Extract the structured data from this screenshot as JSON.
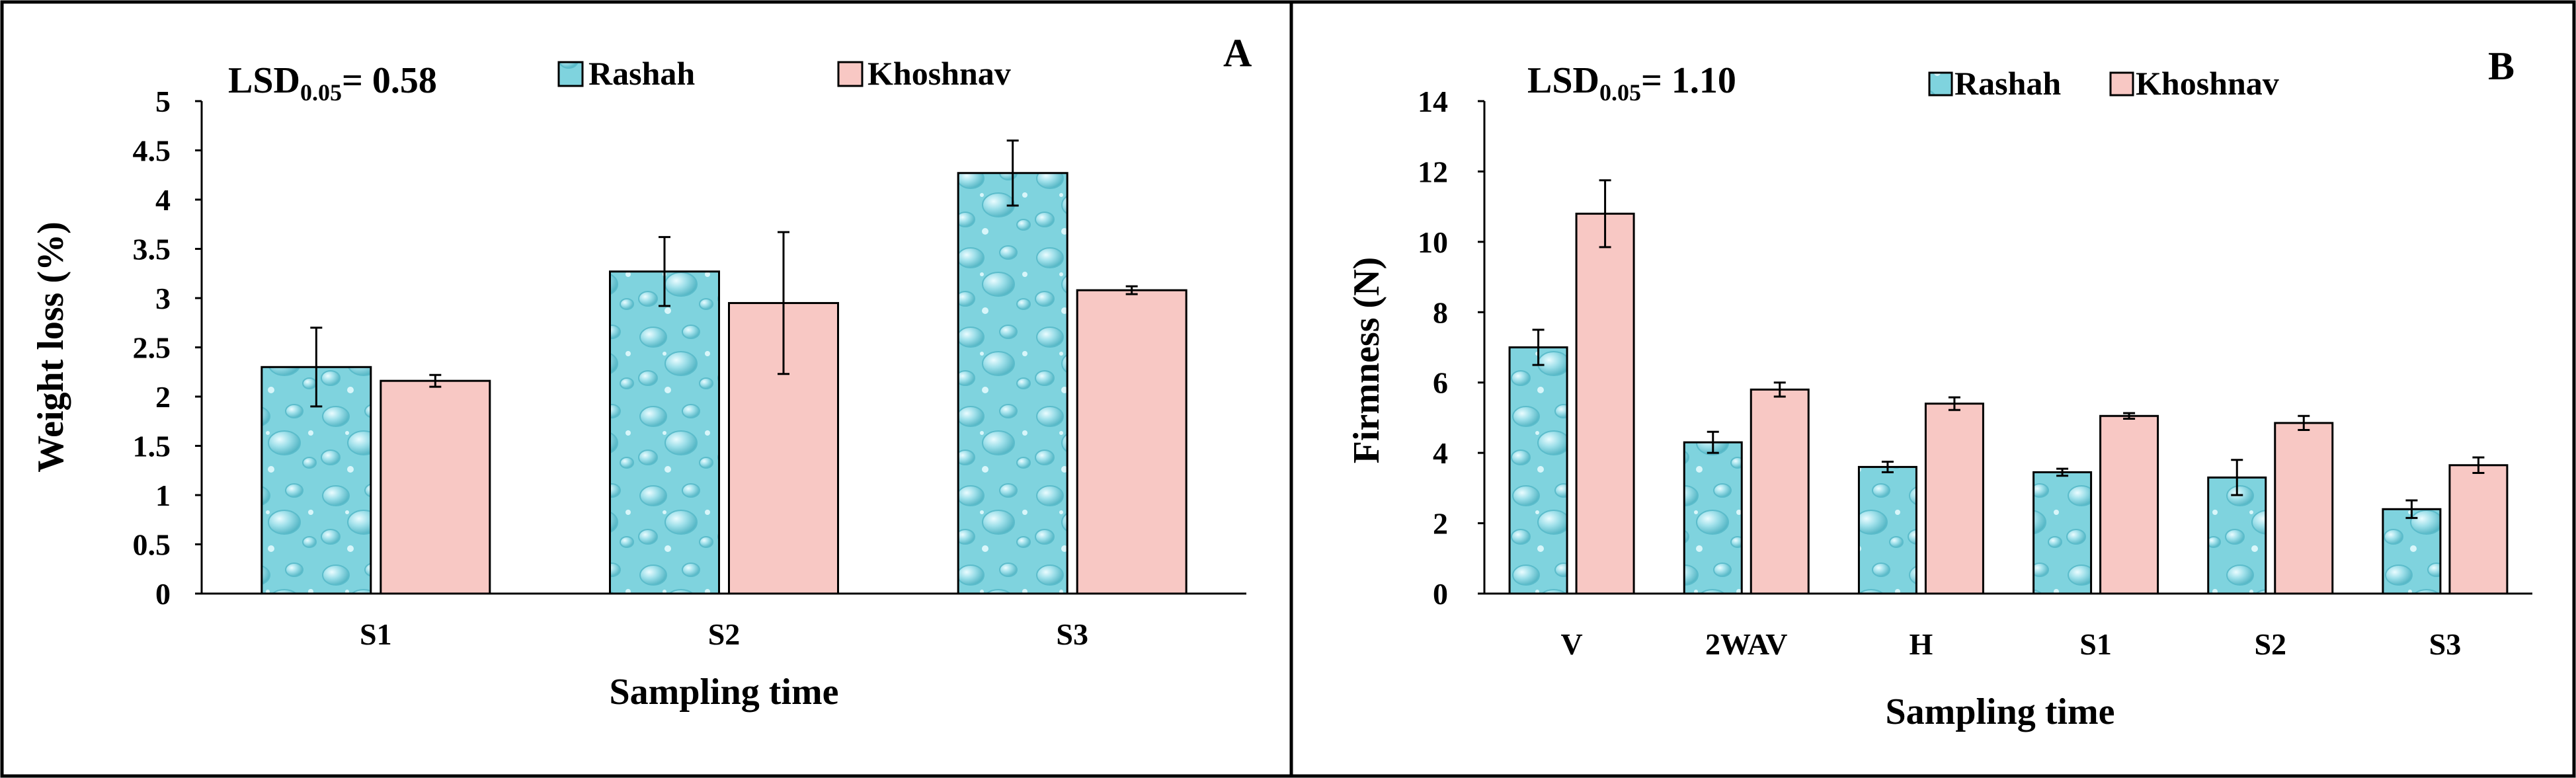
{
  "chart_data": [
    {
      "type": "bar",
      "panel_label": "A",
      "title": "",
      "annotation": {
        "lsd_prefix": "LSD",
        "lsd_sub": "0.05",
        "lsd_value": "= 0.58"
      },
      "xlabel": "Sampling time",
      "ylabel": "Weight loss (%)",
      "categories": [
        "S1",
        "S2",
        "S3"
      ],
      "ylim": [
        0,
        5
      ],
      "yticks": [
        0,
        0.5,
        1,
        1.5,
        2,
        2.5,
        3,
        3.5,
        4,
        4.5,
        5
      ],
      "ytick_labels": [
        "0",
        "0.5",
        "1",
        "1.5",
        "2",
        "2.5",
        "3",
        "3.5",
        "4",
        "4.5",
        "5"
      ],
      "grid": false,
      "legend_position": "top",
      "series": [
        {
          "name": "Rashah",
          "color": "#7fd3de",
          "pattern": "water-drops",
          "values": [
            2.3,
            3.27,
            4.27
          ],
          "errors": [
            0.4,
            0.35,
            0.33
          ]
        },
        {
          "name": "Khoshnav",
          "color": "#f8c8c4",
          "pattern": "solid",
          "values": [
            2.16,
            2.95,
            3.08
          ],
          "errors": [
            0.06,
            0.72,
            0.04
          ]
        }
      ]
    },
    {
      "type": "bar",
      "panel_label": "B",
      "title": "",
      "annotation": {
        "lsd_prefix": "LSD",
        "lsd_sub": "0.05",
        "lsd_value": "= 1.10"
      },
      "xlabel": "Sampling time",
      "ylabel": "Firmness (N)",
      "categories": [
        "V",
        "2WAV",
        "H",
        "S1",
        "S2",
        "S3"
      ],
      "ylim": [
        0,
        14
      ],
      "yticks": [
        0,
        2,
        4,
        6,
        8,
        10,
        12,
        14
      ],
      "ytick_labels": [
        "0",
        "2",
        "4",
        "6",
        "8",
        "10",
        "12",
        "14"
      ],
      "grid": false,
      "legend_position": "top",
      "series": [
        {
          "name": "Rashah",
          "color": "#7fd3de",
          "pattern": "water-drops",
          "values": [
            7.0,
            4.3,
            3.6,
            3.45,
            3.3,
            2.4
          ],
          "errors": [
            0.5,
            0.3,
            0.15,
            0.1,
            0.5,
            0.25
          ]
        },
        {
          "name": "Khoshnav",
          "color": "#f8c8c4",
          "pattern": "solid",
          "values": [
            10.8,
            5.8,
            5.4,
            5.05,
            4.85,
            3.65
          ],
          "errors": [
            0.95,
            0.2,
            0.18,
            0.08,
            0.2,
            0.22
          ]
        }
      ]
    }
  ]
}
